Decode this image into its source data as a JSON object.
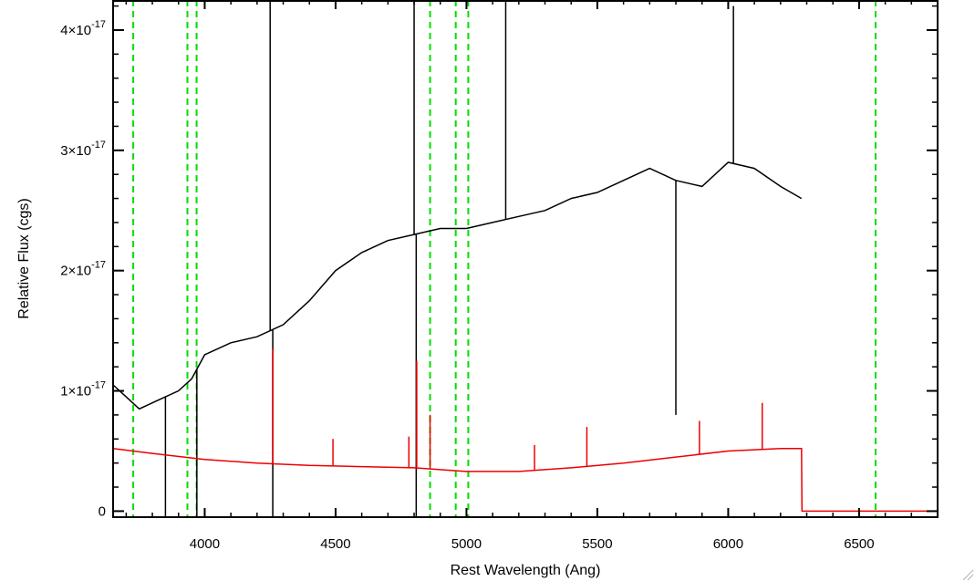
{
  "chart_data": {
    "type": "line",
    "title": "",
    "xlabel": "Rest Wavelength (Ang)",
    "ylabel": "Relative Flux (cgs)",
    "xlim": [
      3650,
      6800
    ],
    "ylim": [
      -5e-19,
      4.25e-17
    ],
    "x_ticks": [
      {
        "value": 4000,
        "label": "4000"
      },
      {
        "value": 4500,
        "label": "4500"
      },
      {
        "value": 5000,
        "label": "5000"
      },
      {
        "value": 5500,
        "label": "5500"
      },
      {
        "value": 6000,
        "label": "6000"
      },
      {
        "value": 6500,
        "label": "6500"
      }
    ],
    "y_ticks": [
      {
        "value": 0,
        "mantissa": "0",
        "exponent": ""
      },
      {
        "value": 1e-17,
        "mantissa": "1×10",
        "exponent": "-17"
      },
      {
        "value": 2e-17,
        "mantissa": "2×10",
        "exponent": "-17"
      },
      {
        "value": 3e-17,
        "mantissa": "3×10",
        "exponent": "-17"
      },
      {
        "value": 4e-17,
        "mantissa": "4×10",
        "exponent": "-17"
      }
    ],
    "grid": false,
    "colors": {
      "spectrum": "#000000",
      "model": "#ee0000",
      "lines": "#00dd00"
    },
    "vertical_lines": [
      3727,
      3934,
      3969,
      4861,
      4959,
      5007,
      6563
    ],
    "series": [
      {
        "color": "#000000",
        "points": [
          [
            3650,
            1.05e-17
          ],
          [
            3700,
            9.5e-18
          ],
          [
            3750,
            8.5e-18
          ],
          [
            3800,
            9e-18
          ],
          [
            3850,
            9.5e-18
          ],
          [
            3900,
            1e-17
          ],
          [
            3950,
            1.1e-17
          ],
          [
            4000,
            1.3e-17
          ],
          [
            4100,
            1.4e-17
          ],
          [
            4200,
            1.45e-17
          ],
          [
            4300,
            1.55e-17
          ],
          [
            4400,
            1.75e-17
          ],
          [
            4500,
            2e-17
          ],
          [
            4600,
            2.15e-17
          ],
          [
            4700,
            2.25e-17
          ],
          [
            4800,
            2.3e-17
          ],
          [
            4900,
            2.35e-17
          ],
          [
            5000,
            2.35e-17
          ],
          [
            5100,
            2.4e-17
          ],
          [
            5200,
            2.45e-17
          ],
          [
            5300,
            2.5e-17
          ],
          [
            5400,
            2.6e-17
          ],
          [
            5500,
            2.65e-17
          ],
          [
            5600,
            2.75e-17
          ],
          [
            5700,
            2.85e-17
          ],
          [
            5800,
            2.75e-17
          ],
          [
            5900,
            2.7e-17
          ],
          [
            6000,
            2.9e-17
          ],
          [
            6100,
            2.85e-17
          ],
          [
            6200,
            2.7e-17
          ],
          [
            6280,
            2.6e-17
          ]
        ],
        "spikes": [
          [
            3850,
            -5e-19
          ],
          [
            3970,
            -5e-19
          ],
          [
            4250,
            4.25e-17
          ],
          [
            4260,
            -5e-19
          ],
          [
            4800,
            4.25e-17
          ],
          [
            4808,
            -5e-19
          ],
          [
            5150,
            4.25e-17
          ],
          [
            5800,
            8e-18
          ],
          [
            6020,
            4.2e-17
          ]
        ]
      },
      {
        "color": "#ee0000",
        "points": [
          [
            3650,
            5.2e-18
          ],
          [
            3800,
            4.8e-18
          ],
          [
            4000,
            4.3e-18
          ],
          [
            4200,
            4e-18
          ],
          [
            4400,
            3.8e-18
          ],
          [
            4600,
            3.7e-18
          ],
          [
            4800,
            3.6e-18
          ],
          [
            5000,
            3.3e-18
          ],
          [
            5200,
            3.3e-18
          ],
          [
            5400,
            3.6e-18
          ],
          [
            5600,
            4e-18
          ],
          [
            5800,
            4.5e-18
          ],
          [
            6000,
            5e-18
          ],
          [
            6200,
            5.2e-18
          ],
          [
            6280,
            5.2e-18
          ],
          [
            6282,
            0.0
          ],
          [
            6800,
            0.0
          ]
        ],
        "spikes": [
          [
            4260,
            1.35e-17
          ],
          [
            4490,
            6e-18
          ],
          [
            4780,
            6.2e-18
          ],
          [
            4810,
            1.25e-17
          ],
          [
            4861,
            8e-18
          ],
          [
            5260,
            5.5e-18
          ],
          [
            5460,
            7e-18
          ],
          [
            5890,
            7.5e-18
          ],
          [
            6130,
            9e-18
          ]
        ]
      }
    ]
  }
}
